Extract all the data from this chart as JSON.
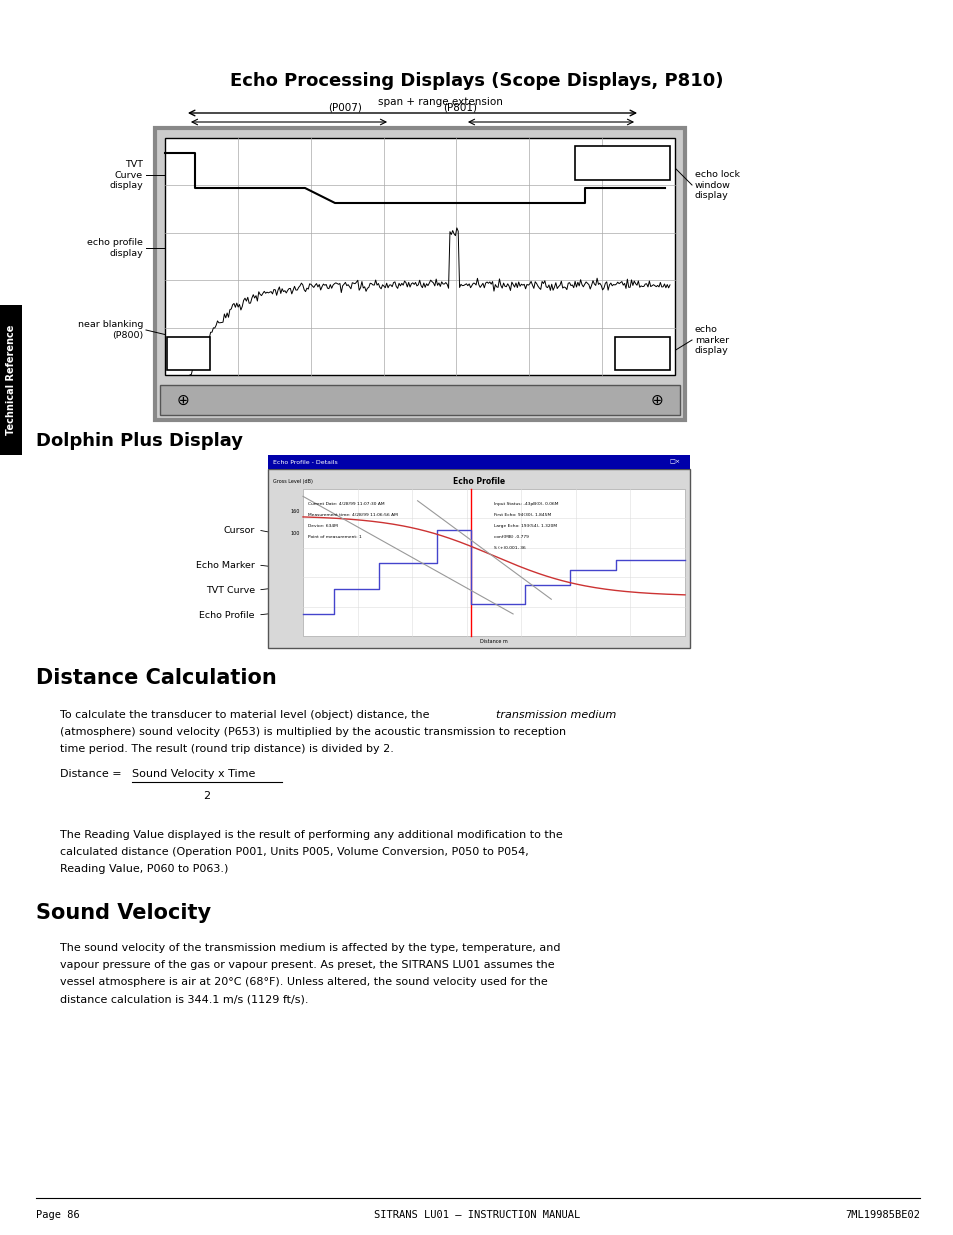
{
  "page_background": "#ffffff",
  "section1_title": "Echo Processing Displays (Scope Displays, P810)",
  "span_label": "span + range extension",
  "p007_label": "(P007)",
  "p801_label": "(P801)",
  "section2_title": "Dolphin Plus Display",
  "section3_title": "Distance Calculation",
  "section4_title": "Sound Velocity",
  "footer_left": "Page 86",
  "footer_center": "SITRANS LU01 – INSTRUCTION MANUAL",
  "footer_right": "7ML19985BE02",
  "sidebar_text": "Technical Reference"
}
